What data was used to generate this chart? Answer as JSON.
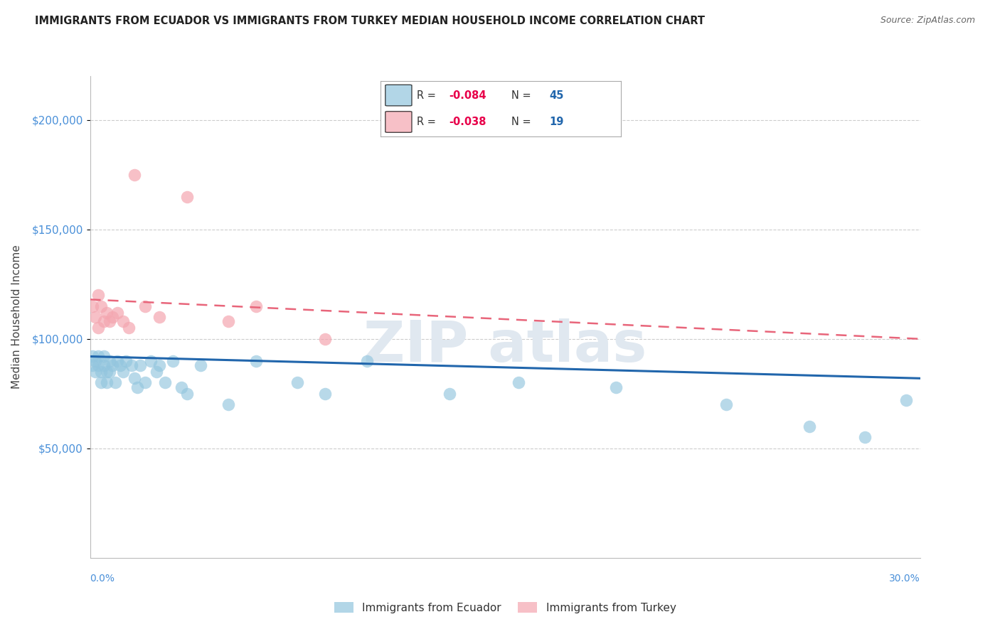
{
  "title": "IMMIGRANTS FROM ECUADOR VS IMMIGRANTS FROM TURKEY MEDIAN HOUSEHOLD INCOME CORRELATION CHART",
  "source": "Source: ZipAtlas.com",
  "ylabel": "Median Household Income",
  "xlim": [
    0.0,
    0.3
  ],
  "ylim": [
    0,
    220000
  ],
  "yticks": [
    50000,
    100000,
    150000,
    200000
  ],
  "ytick_labels": [
    "$50,000",
    "$100,000",
    "$150,000",
    "$200,000"
  ],
  "ecuador_color": "#92c5de",
  "turkey_color": "#f4a6b0",
  "ecuador_line_color": "#2166ac",
  "turkey_line_color": "#e8657a",
  "ecuador_r": -0.084,
  "ecuador_n": 45,
  "turkey_r": -0.038,
  "turkey_n": 19,
  "ecuador_points_x": [
    0.001,
    0.001,
    0.002,
    0.002,
    0.003,
    0.003,
    0.004,
    0.004,
    0.005,
    0.005,
    0.006,
    0.006,
    0.007,
    0.007,
    0.008,
    0.009,
    0.01,
    0.011,
    0.012,
    0.013,
    0.015,
    0.016,
    0.017,
    0.018,
    0.02,
    0.022,
    0.024,
    0.025,
    0.027,
    0.03,
    0.033,
    0.035,
    0.04,
    0.05,
    0.06,
    0.075,
    0.085,
    0.1,
    0.13,
    0.155,
    0.19,
    0.23,
    0.26,
    0.28,
    0.295
  ],
  "ecuador_points_y": [
    92000,
    88000,
    90000,
    85000,
    92000,
    88000,
    85000,
    80000,
    92000,
    88000,
    85000,
    80000,
    90000,
    85000,
    88000,
    80000,
    90000,
    88000,
    85000,
    90000,
    88000,
    82000,
    78000,
    88000,
    80000,
    90000,
    85000,
    88000,
    80000,
    90000,
    78000,
    75000,
    88000,
    70000,
    90000,
    80000,
    75000,
    90000,
    75000,
    80000,
    78000,
    70000,
    60000,
    55000,
    72000
  ],
  "turkey_points_x": [
    0.001,
    0.002,
    0.003,
    0.003,
    0.004,
    0.005,
    0.006,
    0.007,
    0.008,
    0.01,
    0.012,
    0.014,
    0.016,
    0.02,
    0.025,
    0.035,
    0.05,
    0.06,
    0.085
  ],
  "turkey_points_y": [
    115000,
    110000,
    120000,
    105000,
    115000,
    108000,
    112000,
    108000,
    110000,
    112000,
    108000,
    105000,
    175000,
    115000,
    110000,
    165000,
    108000,
    115000,
    100000
  ],
  "ecuador_line_x": [
    0.0,
    0.3
  ],
  "ecuador_line_y": [
    92000,
    82000
  ],
  "turkey_line_x": [
    0.0,
    0.3
  ],
  "turkey_line_y": [
    118000,
    100000
  ],
  "title_color": "#222222",
  "axis_label_color": "#4a90d9",
  "grid_color": "#cccccc",
  "background_color": "#ffffff",
  "watermark_text": "ZIP atlas",
  "watermark_color": "#e0e8f0",
  "legend_r_color": "#e8004a",
  "legend_n_color": "#2166ac",
  "legend_text_color": "#333333"
}
